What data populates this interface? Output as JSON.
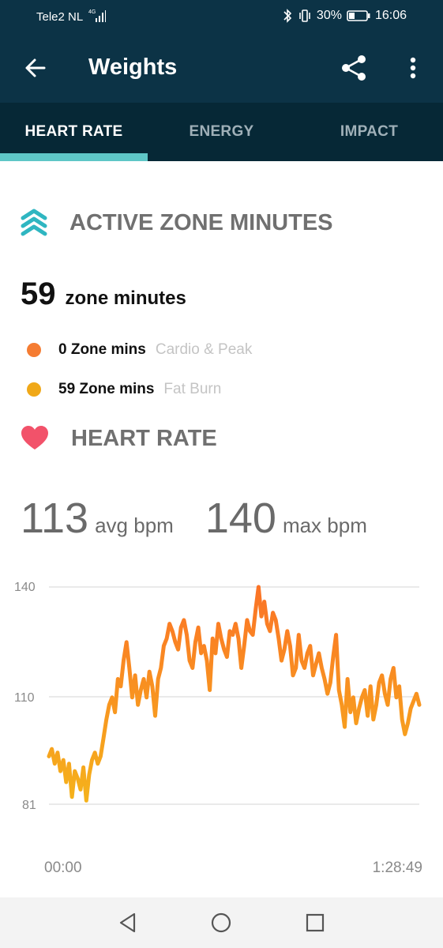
{
  "status_bar": {
    "carrier": "Tele2 NL",
    "battery": "30%",
    "time": "16:06"
  },
  "app_bar": {
    "title": "Weights",
    "icons": [
      "back-arrow-icon",
      "share-icon",
      "more-vert-icon"
    ]
  },
  "tabs": [
    {
      "label": "HEART RATE",
      "active": true
    },
    {
      "label": "ENERGY",
      "active": false
    },
    {
      "label": "IMPACT",
      "active": false
    }
  ],
  "active_zone_minutes": {
    "heading": "ACTIVE ZONE MINUTES",
    "total": "59",
    "total_unit": "zone minutes",
    "zones": [
      {
        "value": "0 Zone mins",
        "category": "Cardio & Peak",
        "color": "#f57c32"
      },
      {
        "value": "59 Zone mins",
        "category": "Fat Burn",
        "color": "#f0a818"
      }
    ]
  },
  "heart_rate": {
    "heading": "HEART RATE",
    "avg": "113",
    "avg_unit": "avg bpm",
    "max": "140",
    "max_unit": "max bpm"
  },
  "chart_data": {
    "type": "line",
    "y_ticks": [
      "140",
      "110",
      "81"
    ],
    "x_ticks": [
      "00:00",
      "1:28:49"
    ],
    "ylim": [
      81,
      140
    ],
    "x_start": "00:00",
    "x_end": "1:28:49",
    "series": [
      {
        "values": [
          94,
          96,
          92,
          95,
          90,
          93,
          87,
          92,
          83,
          90,
          88,
          85,
          91,
          82,
          89,
          93,
          95,
          92,
          94,
          99,
          104,
          108,
          110,
          106,
          115,
          113,
          120,
          125,
          118,
          110,
          116,
          108,
          112,
          115,
          110,
          117,
          113,
          105,
          115,
          118,
          124,
          126,
          130,
          128,
          125,
          123,
          129,
          131,
          127,
          120,
          118,
          125,
          129,
          122,
          124,
          120,
          112,
          126,
          122,
          130,
          126,
          123,
          121,
          128,
          127,
          130,
          126,
          118,
          124,
          131,
          128,
          127,
          134,
          140,
          132,
          136,
          130,
          128,
          133,
          131,
          126,
          120,
          123,
          128,
          124,
          116,
          118,
          127,
          120,
          118,
          122,
          124,
          116,
          119,
          122,
          118,
          115,
          111,
          114,
          121,
          127,
          112,
          108,
          102,
          115,
          106,
          110,
          103,
          107,
          110,
          112,
          105,
          113,
          104,
          108,
          114,
          116,
          111,
          108,
          115,
          118,
          110,
          113,
          104,
          100,
          103,
          107,
          109,
          111,
          108
        ]
      }
    ],
    "colors": {
      "high": "#fb7326",
      "low": "#f5b21b"
    },
    "grid": true
  },
  "nav_bar": {
    "icons": [
      "nav-back-icon",
      "nav-home-icon",
      "nav-recents-icon"
    ]
  }
}
